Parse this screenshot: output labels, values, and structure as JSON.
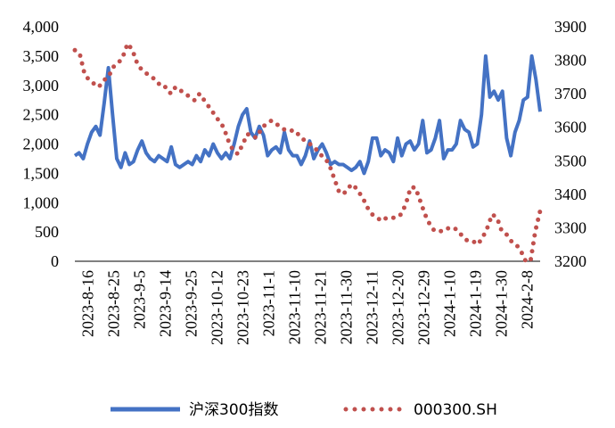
{
  "chart_data": {
    "type": "line",
    "title": "",
    "xlabel": "",
    "ylabel": "",
    "y_left": {
      "ylim": [
        0,
        4000
      ],
      "ticks": [
        "0",
        "500",
        "1,000",
        "1,500",
        "2,000",
        "2,500",
        "3,000",
        "3,500",
        "4,000"
      ]
    },
    "y_right": {
      "ylim": [
        3200,
        3900
      ],
      "ticks": [
        "3200",
        "3300",
        "3400",
        "3500",
        "3600",
        "3700",
        "3800",
        "3900"
      ]
    },
    "x_tick_labels": [
      "2023-8-16",
      "2023-8-25",
      "2023-9-5",
      "2023-9-14",
      "2023-9-25",
      "2023-10-12",
      "2023-10-23",
      "2023-11-1",
      "2023-11-10",
      "2023-11-21",
      "2023-11-30",
      "2023-12-11",
      "2023-12-20",
      "2023-12-29",
      "2024-1-10",
      "2024-1-19",
      "2024-1-30",
      "2024-2-8"
    ],
    "grid": false,
    "legend_position": "bottom",
    "series": [
      {
        "name": "沪深300指数",
        "axis": "left",
        "color": "#4472C4",
        "style": "solid",
        "values": [
          1800,
          1850,
          1750,
          2000,
          2200,
          2300,
          2150,
          2700,
          3300,
          2500,
          1750,
          1600,
          1850,
          1650,
          1700,
          1900,
          2050,
          1850,
          1750,
          1700,
          1800,
          1750,
          1700,
          1950,
          1650,
          1600,
          1650,
          1700,
          1650,
          1800,
          1700,
          1900,
          1800,
          2000,
          1850,
          1750,
          1850,
          1750,
          2000,
          2300,
          2500,
          2600,
          2200,
          2100,
          2300,
          2150,
          1800,
          1900,
          1950,
          1850,
          2200,
          1900,
          1800,
          1800,
          1650,
          1800,
          2050,
          1750,
          1900,
          2000,
          1850,
          1650,
          1700,
          1650,
          1650,
          1600,
          1550,
          1600,
          1700,
          1500,
          1700,
          2100,
          2100,
          1800,
          1900,
          1850,
          1700,
          2100,
          1800,
          2000,
          2050,
          1900,
          2000,
          2400,
          1850,
          1900,
          2100,
          2400,
          1750,
          1900,
          1900,
          2000,
          2400,
          2250,
          2200,
          1950,
          2000,
          2500,
          3500,
          2800,
          2900,
          2750,
          2900,
          2100,
          1800,
          2200,
          2400,
          2750,
          2800,
          3500,
          3100,
          2550
        ]
      },
      {
        "name": "000300.SH",
        "axis": "right",
        "color": "#C0504D",
        "style": "dotted",
        "values": [
          3830,
          3820,
          3760,
          3740,
          3730,
          3720,
          3740,
          3750,
          3780,
          3790,
          3810,
          3850,
          3830,
          3790,
          3770,
          3760,
          3750,
          3740,
          3720,
          3720,
          3700,
          3720,
          3710,
          3700,
          3690,
          3680,
          3700,
          3680,
          3660,
          3640,
          3620,
          3600,
          3560,
          3530,
          3520,
          3550,
          3580,
          3570,
          3570,
          3600,
          3610,
          3620,
          3610,
          3600,
          3590,
          3590,
          3590,
          3570,
          3560,
          3550,
          3540,
          3520,
          3510,
          3490,
          3450,
          3410,
          3400,
          3420,
          3430,
          3410,
          3390,
          3360,
          3340,
          3330,
          3320,
          3330,
          3330,
          3330,
          3340,
          3370,
          3420,
          3420,
          3380,
          3340,
          3310,
          3290,
          3290,
          3290,
          3300,
          3300,
          3290,
          3270,
          3260,
          3260,
          3250,
          3270,
          3300,
          3340,
          3330,
          3290,
          3280,
          3260,
          3250,
          3230,
          3200,
          3200,
          3290,
          3350
        ]
      }
    ]
  },
  "legend": {
    "series1_label": "沪深300指数",
    "series2_label": "000300.SH"
  }
}
